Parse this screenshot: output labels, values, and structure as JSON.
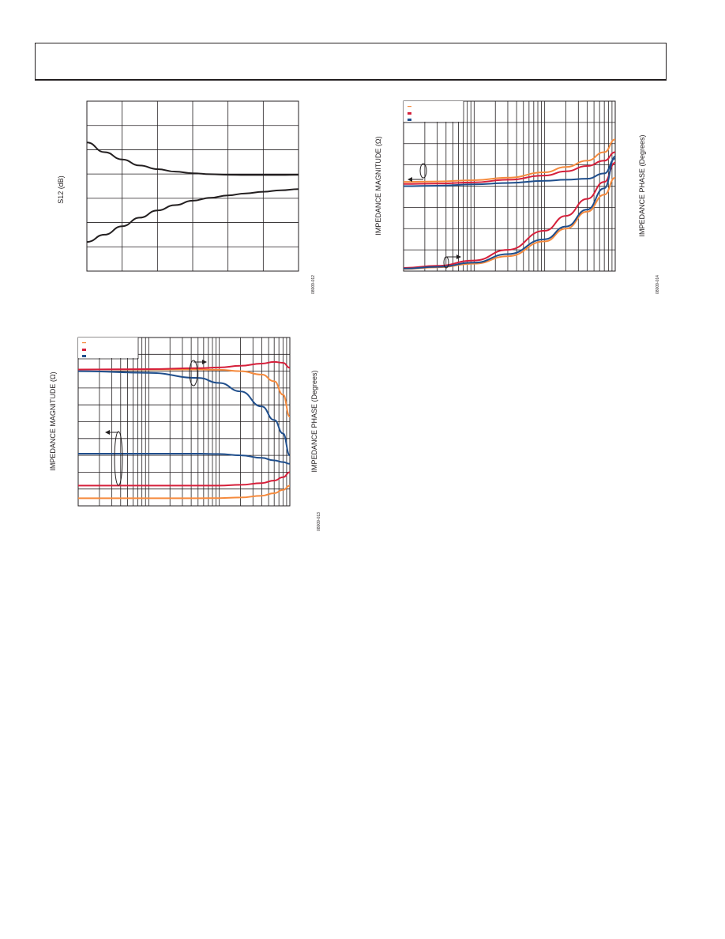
{
  "header": {
    "title": ""
  },
  "charts": [
    {
      "id": "s12",
      "ylabel": "S12 (dB)",
      "fig_id": "08009-012"
    },
    {
      "id": "impedance-right",
      "ylabel_left": "IMPEDANCE MAGNITUDE (Ω)",
      "ylabel_right": "IMPEDANCE PHASE (Degrees)",
      "fig_id": "08009-014",
      "legend_colors": [
        "#f58a3d",
        "#d51f3a",
        "#1f4e8c"
      ]
    },
    {
      "id": "impedance-left",
      "ylabel_left": "IMPEDANCE MAGNITUDE (Ω)",
      "ylabel_right": "IMPEDANCE PHASE (Degrees)",
      "fig_id": "08009-013",
      "legend_colors": [
        "#f58a3d",
        "#d51f3a",
        "#1f4e8c"
      ]
    }
  ],
  "chart_data": [
    {
      "type": "line",
      "title": "",
      "xlabel": "",
      "ylabel": "S12 (dB)",
      "xlim": [
        0,
        6
      ],
      "ylim": [
        0,
        7
      ],
      "grid": true,
      "series": [
        {
          "x": [
            0,
            0.5,
            1,
            1.5,
            2,
            2.5,
            3,
            3.5,
            4,
            4.5,
            5,
            5.5,
            6
          ],
          "y": [
            5.3,
            4.9,
            4.6,
            4.35,
            4.2,
            4.1,
            4.03,
            3.99,
            3.97,
            3.96,
            3.96,
            3.96,
            3.97
          ]
        },
        {
          "x": [
            0,
            0.5,
            1,
            1.5,
            2,
            2.5,
            3,
            3.5,
            4,
            4.5,
            5,
            5.5,
            6
          ],
          "y": [
            1.2,
            1.5,
            1.85,
            2.2,
            2.5,
            2.72,
            2.9,
            3.02,
            3.12,
            3.2,
            3.27,
            3.33,
            3.38
          ]
        }
      ]
    },
    {
      "type": "line",
      "title": "",
      "xlabel": "",
      "xscale": "log",
      "xlim": [
        1,
        1000
      ],
      "ylim": [
        0,
        8
      ],
      "grid": true,
      "legend": "top-left",
      "series": [
        {
          "color": "#f58a3d",
          "x": [
            1,
            3,
            10,
            30,
            100,
            200,
            400,
            700,
            1000
          ],
          "y": [
            4.2,
            4.22,
            4.28,
            4.4,
            4.65,
            4.9,
            5.2,
            5.6,
            6.2
          ]
        },
        {
          "color": "#d51f3a",
          "x": [
            1,
            3,
            10,
            30,
            100,
            200,
            400,
            700,
            1000
          ],
          "y": [
            4.1,
            4.12,
            4.18,
            4.3,
            4.5,
            4.7,
            4.95,
            5.2,
            5.6
          ]
        },
        {
          "color": "#1f4e8c",
          "x": [
            1,
            3,
            10,
            30,
            100,
            200,
            400,
            700,
            1000
          ],
          "y": [
            4.0,
            4.02,
            4.08,
            4.15,
            4.25,
            4.3,
            4.35,
            4.6,
            5.3
          ]
        },
        {
          "color": "#f58a3d",
          "x": [
            1,
            3,
            10,
            30,
            100,
            200,
            400,
            700,
            1000
          ],
          "y": [
            0.1,
            0.18,
            0.35,
            0.7,
            1.4,
            2.0,
            2.8,
            3.6,
            4.4
          ]
        },
        {
          "color": "#d51f3a",
          "x": [
            1,
            3,
            10,
            30,
            100,
            200,
            400,
            700,
            1000
          ],
          "y": [
            0.15,
            0.25,
            0.5,
            1.0,
            1.9,
            2.6,
            3.4,
            4.2,
            5.1
          ]
        },
        {
          "color": "#1f4e8c",
          "x": [
            1,
            3,
            10,
            30,
            100,
            200,
            400,
            700,
            1000
          ],
          "y": [
            0.12,
            0.2,
            0.4,
            0.8,
            1.5,
            2.1,
            2.9,
            3.9,
            5.4
          ]
        }
      ]
    },
    {
      "type": "line",
      "title": "",
      "xlabel": "",
      "xscale": "log",
      "xlim": [
        1,
        1000
      ],
      "ylim": [
        0,
        10
      ],
      "grid": true,
      "legend": "top-left",
      "series": [
        {
          "color": "#f58a3d",
          "x": [
            1,
            10,
            50,
            100,
            200,
            400,
            600,
            800,
            1000
          ],
          "y": [
            8.1,
            8.1,
            8.1,
            8.08,
            8.0,
            7.8,
            7.4,
            6.6,
            5.3
          ]
        },
        {
          "color": "#d51f3a",
          "x": [
            1,
            10,
            50,
            100,
            200,
            400,
            600,
            800,
            1000
          ],
          "y": [
            8.1,
            8.12,
            8.18,
            8.22,
            8.32,
            8.45,
            8.55,
            8.5,
            8.2
          ]
        },
        {
          "color": "#1f4e8c",
          "x": [
            1,
            10,
            50,
            100,
            200,
            400,
            600,
            800,
            1000
          ],
          "y": [
            8.0,
            7.9,
            7.6,
            7.3,
            6.8,
            5.9,
            5.1,
            4.3,
            3.0
          ]
        },
        {
          "color": "#1f4e8c",
          "x": [
            1,
            10,
            50,
            100,
            200,
            400,
            600,
            800,
            1000
          ],
          "y": [
            3.1,
            3.1,
            3.1,
            3.08,
            3.0,
            2.85,
            2.7,
            2.6,
            2.5
          ]
        },
        {
          "color": "#d51f3a",
          "x": [
            1,
            10,
            50,
            100,
            200,
            400,
            600,
            800,
            1000
          ],
          "y": [
            1.2,
            1.2,
            1.2,
            1.2,
            1.25,
            1.35,
            1.5,
            1.7,
            2.0
          ]
        },
        {
          "color": "#f58a3d",
          "x": [
            1,
            10,
            50,
            100,
            200,
            400,
            600,
            800,
            1000
          ],
          "y": [
            0.45,
            0.45,
            0.45,
            0.46,
            0.5,
            0.6,
            0.75,
            0.95,
            1.2
          ]
        }
      ]
    }
  ]
}
